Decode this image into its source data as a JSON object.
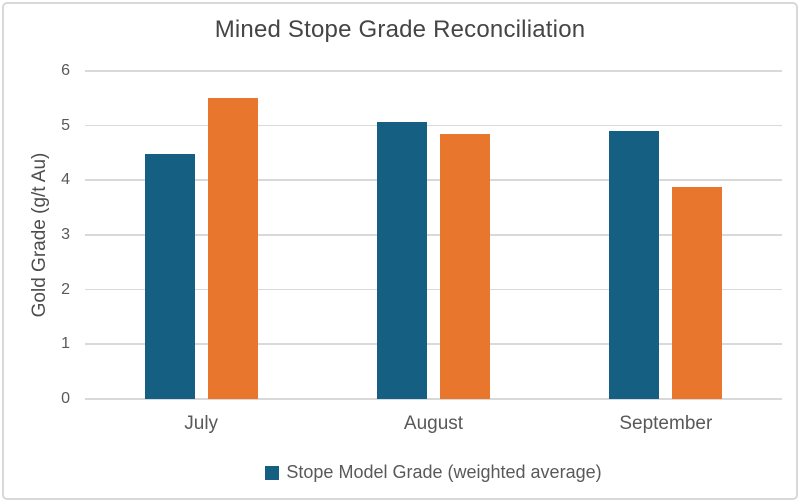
{
  "chart_data": {
    "type": "bar",
    "title": "Mined Stope Grade Reconciliation",
    "xlabel": "",
    "ylabel": "Gold Grade (g/t Au)",
    "categories": [
      "July",
      "August",
      "September"
    ],
    "series": [
      {
        "name": "Stope Model Grade (weighted average)",
        "color": "#156082",
        "values": [
          4.48,
          5.06,
          4.91
        ]
      },
      {
        "name": "",
        "color": "#E8762D",
        "values": [
          5.5,
          4.85,
          3.88
        ]
      }
    ],
    "ylim": [
      0,
      6
    ],
    "yticks": [
      0,
      1,
      2,
      3,
      4,
      5,
      6
    ],
    "grid": true,
    "legend_position": "bottom",
    "legend_items": [
      {
        "label": "Stope Model Grade (weighted average)",
        "color": "#156082"
      }
    ]
  },
  "colors": {
    "bar_blue": "#156082",
    "bar_orange": "#E8762D",
    "gridline": "#d9d9d9",
    "axis_text": "#595959",
    "title_text": "#454545",
    "card_border": "#d8d8d8"
  }
}
